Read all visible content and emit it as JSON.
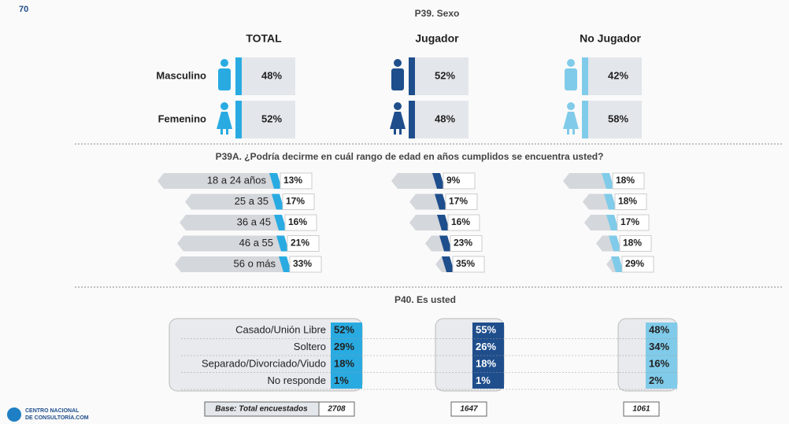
{
  "page_number": "70",
  "sex": {
    "title": "P39. Sexo",
    "groups": [
      "TOTAL",
      "Jugador",
      "No Jugador"
    ],
    "rows": [
      {
        "label": "Masculino",
        "values": [
          "48%",
          "52%",
          "42%"
        ]
      },
      {
        "label": "Femenino",
        "values": [
          "52%",
          "48%",
          "58%"
        ]
      }
    ]
  },
  "age": {
    "title": "P39A. ¿Podría decirme en cuál rango de edad en años cumplidos se  encuentra usted?",
    "rows": [
      {
        "label": "18 a 24 años",
        "values": [
          "13%",
          "9%",
          "18%"
        ]
      },
      {
        "label": "25 a 35",
        "values": [
          "17%",
          "17%",
          "18%"
        ]
      },
      {
        "label": "36 a 45",
        "values": [
          "16%",
          "16%",
          "17%"
        ]
      },
      {
        "label": "46 a 55",
        "values": [
          "21%",
          "23%",
          "18%"
        ]
      },
      {
        "label": "56 o más",
        "values": [
          "33%",
          "35%",
          "29%"
        ]
      }
    ]
  },
  "status": {
    "title": "P40. Es usted",
    "rows": [
      {
        "label": "Casado/Unión Libre",
        "values": [
          "52%",
          "55%",
          "48%"
        ]
      },
      {
        "label": "Soltero",
        "values": [
          "29%",
          "26%",
          "34%"
        ]
      },
      {
        "label": "Separado/Divorciado/Viudo",
        "values": [
          "18%",
          "18%",
          "16%"
        ]
      },
      {
        "label": "No responde",
        "values": [
          "1%",
          "1%",
          "2%"
        ]
      }
    ]
  },
  "base": {
    "label": "Base: Total encuestados",
    "values": [
      "2708",
      "1647",
      "1061"
    ]
  },
  "logo": {
    "line1": "CENTRO NACIONAL",
    "line2": "DE CONSULTORÍA.COM"
  }
}
